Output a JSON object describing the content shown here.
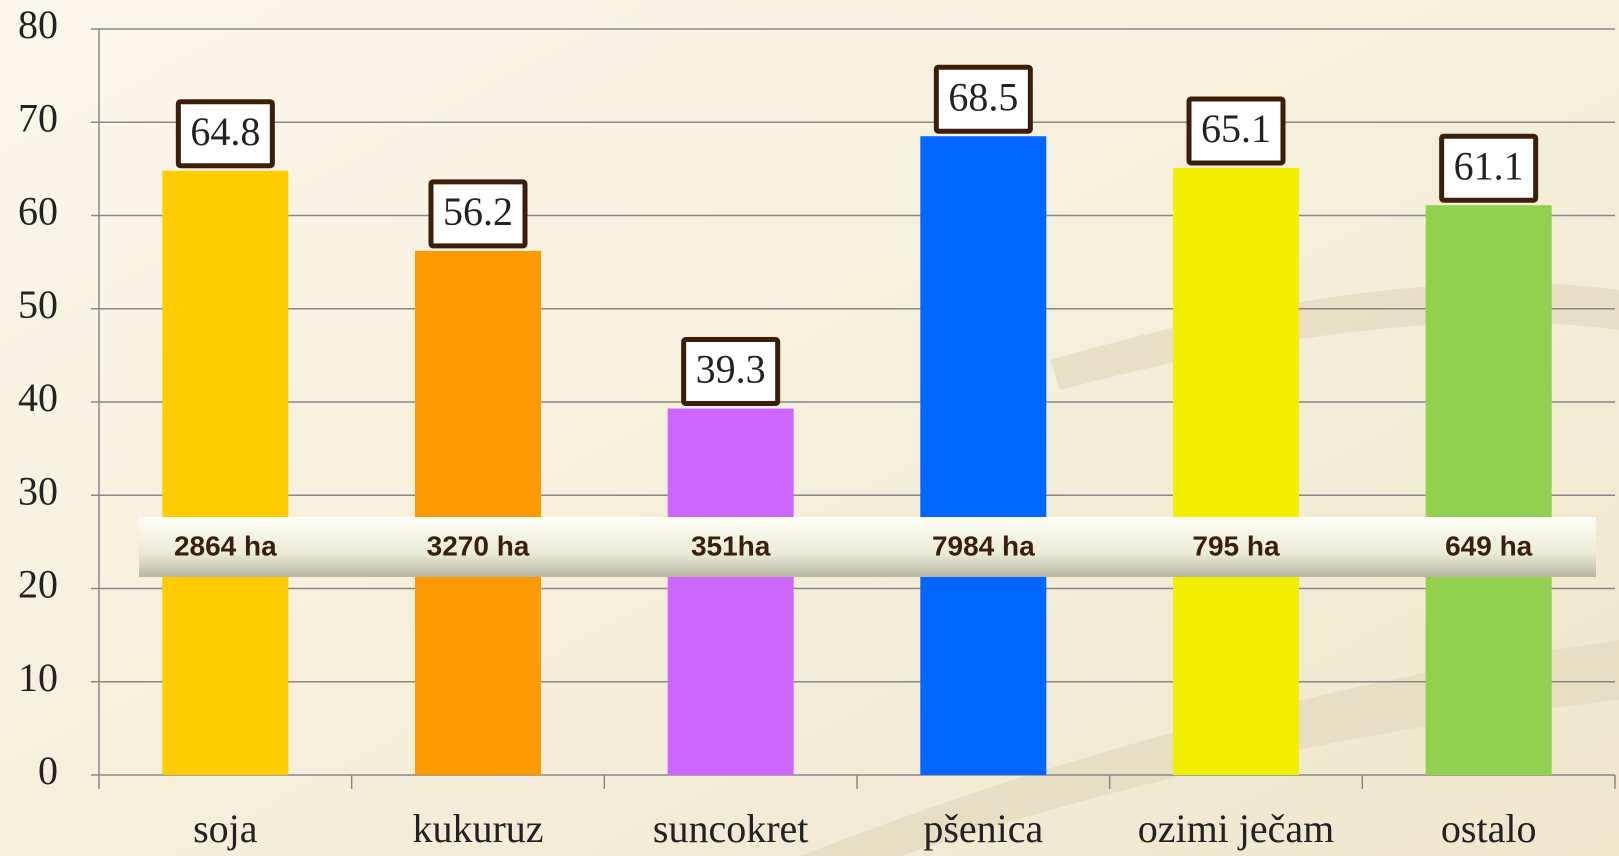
{
  "chart_data": {
    "type": "bar",
    "categories": [
      "soja",
      "kukuruz",
      "suncokret",
      "pšenica",
      "ozimi ječam",
      "ostalo"
    ],
    "values": [
      64.8,
      56.2,
      39.3,
      68.5,
      65.1,
      61.1
    ],
    "colors": [
      "#ffcc00",
      "#ff9900",
      "#cc66ff",
      "#0066ff",
      "#f2f000",
      "#92d050"
    ],
    "annotations": [
      "2864 ha",
      "3270 ha",
      "351ha",
      "7984 ha",
      "795 ha",
      "649 ha"
    ],
    "ylim": [
      0,
      80
    ],
    "yticks": [
      0,
      10,
      20,
      30,
      40,
      50,
      60,
      70,
      80
    ],
    "grid": true
  }
}
